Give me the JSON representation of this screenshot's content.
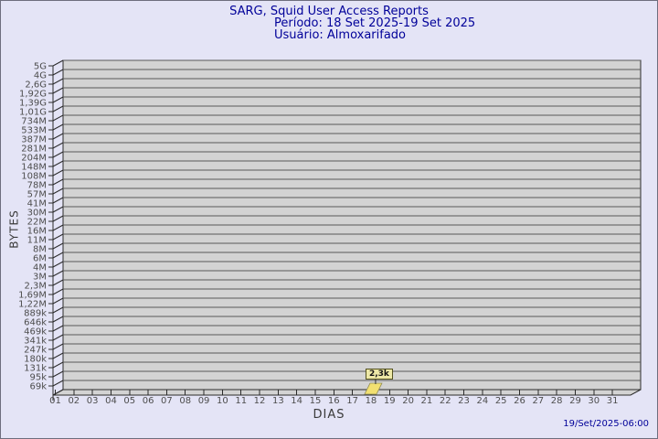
{
  "chart_data": {
    "type": "bar",
    "title": "SARG, Squid User Access Reports",
    "period": "Período: 18 Set 2025-19 Set 2025",
    "user": "Usuário: Almoxarifado",
    "xlabel": "DIAS",
    "ylabel": "BYTES",
    "y_scale": "log",
    "grid": true,
    "y_ticks": [
      "5G",
      "4G",
      "2,6G",
      "1,92G",
      "1,39G",
      "1,01G",
      "734M",
      "533M",
      "387M",
      "281M",
      "204M",
      "148M",
      "108M",
      "78M",
      "57M",
      "41M",
      "30M",
      "22M",
      "16M",
      "11M",
      "8M",
      "6M",
      "4M",
      "3M",
      "2,3M",
      "1,69M",
      "1,22M",
      "889k",
      "646k",
      "469k",
      "341k",
      "247k",
      "180k",
      "131k",
      "95k",
      "69k"
    ],
    "x_ticks": [
      "01",
      "02",
      "03",
      "04",
      "05",
      "06",
      "07",
      "08",
      "09",
      "10",
      "11",
      "12",
      "13",
      "14",
      "15",
      "16",
      "17",
      "18",
      "19",
      "20",
      "21",
      "22",
      "23",
      "24",
      "25",
      "26",
      "27",
      "28",
      "29",
      "30",
      "31"
    ],
    "series": [
      {
        "name": "Almoxarifado",
        "points": [
          {
            "day": "18",
            "label": "2,3k",
            "bytes": 2300
          }
        ]
      }
    ],
    "colors": {
      "background": "#E4E4F6",
      "plot_fill": "#D3D3D3",
      "grid_line": "#5A5A5A",
      "axis_line": "#2B2B2B",
      "bar_fill": "#F2E071",
      "bar_label_bg": "#EDE8A6",
      "title_text": "#000099",
      "tick_text": "#4D4D4D"
    }
  },
  "footer": {
    "generated": "19/Set/2025-06:00"
  }
}
